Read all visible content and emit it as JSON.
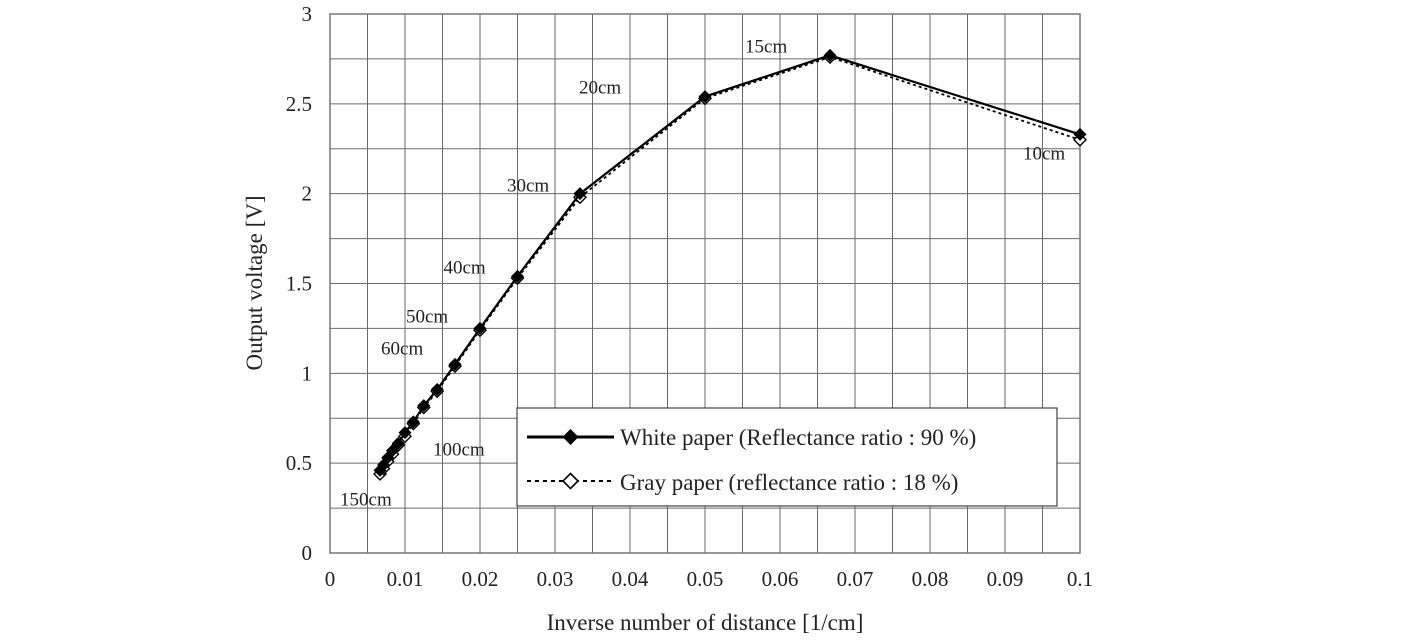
{
  "chart_data": {
    "type": "line",
    "title": "",
    "xlabel": "Inverse number of distance [1/cm]",
    "ylabel": "Output voltage [V]",
    "xlim": [
      0,
      0.1
    ],
    "ylim": [
      0,
      3
    ],
    "xticks": [
      "0",
      "0.01",
      "0.02",
      "0.03",
      "0.04",
      "0.05",
      "0.06",
      "0.07",
      "0.08",
      "0.09",
      "0.1"
    ],
    "yticks": [
      "0",
      "0.5",
      "1",
      "1.5",
      "2",
      "2.5",
      "3"
    ],
    "grid": true,
    "legend_position": "bottom-right",
    "series": [
      {
        "name": "White paper (Reflectance ratio : 90 %)",
        "style": "solid",
        "marker": "filled-diamond",
        "x": [
          0.00667,
          0.00714,
          0.00769,
          0.00833,
          0.00909,
          0.01,
          0.01111,
          0.0125,
          0.01429,
          0.01667,
          0.02,
          0.025,
          0.03333,
          0.05,
          0.06667,
          0.1
        ],
        "y": [
          0.46,
          0.49,
          0.53,
          0.57,
          0.61,
          0.67,
          0.73,
          0.82,
          0.91,
          1.05,
          1.25,
          1.54,
          2.0,
          2.54,
          2.77,
          2.33
        ]
      },
      {
        "name": "Gray paper (reflectance ratio : 18 %)",
        "style": "dotted",
        "marker": "hollow-diamond",
        "x": [
          0.00667,
          0.00714,
          0.00769,
          0.00833,
          0.00909,
          0.01,
          0.01111,
          0.0125,
          0.01429,
          0.01667,
          0.02,
          0.025,
          0.03333,
          0.05,
          0.06667,
          0.1
        ],
        "y": [
          0.44,
          0.47,
          0.51,
          0.55,
          0.6,
          0.65,
          0.72,
          0.81,
          0.9,
          1.04,
          1.24,
          1.53,
          1.98,
          2.53,
          2.76,
          2.3
        ]
      }
    ],
    "annotations": [
      {
        "text": "150cm",
        "x": 0.00667,
        "y": 0.46
      },
      {
        "text": "100cm",
        "x": 0.01,
        "y": 0.67
      },
      {
        "text": "60cm",
        "x": 0.01667,
        "y": 1.05
      },
      {
        "text": "50cm",
        "x": 0.02,
        "y": 1.25
      },
      {
        "text": "40cm",
        "x": 0.025,
        "y": 1.54
      },
      {
        "text": "30cm",
        "x": 0.03333,
        "y": 2.0
      },
      {
        "text": "20cm",
        "x": 0.05,
        "y": 2.54
      },
      {
        "text": "15cm",
        "x": 0.06667,
        "y": 2.77
      },
      {
        "text": "10cm",
        "x": 0.1,
        "y": 2.33
      }
    ]
  }
}
